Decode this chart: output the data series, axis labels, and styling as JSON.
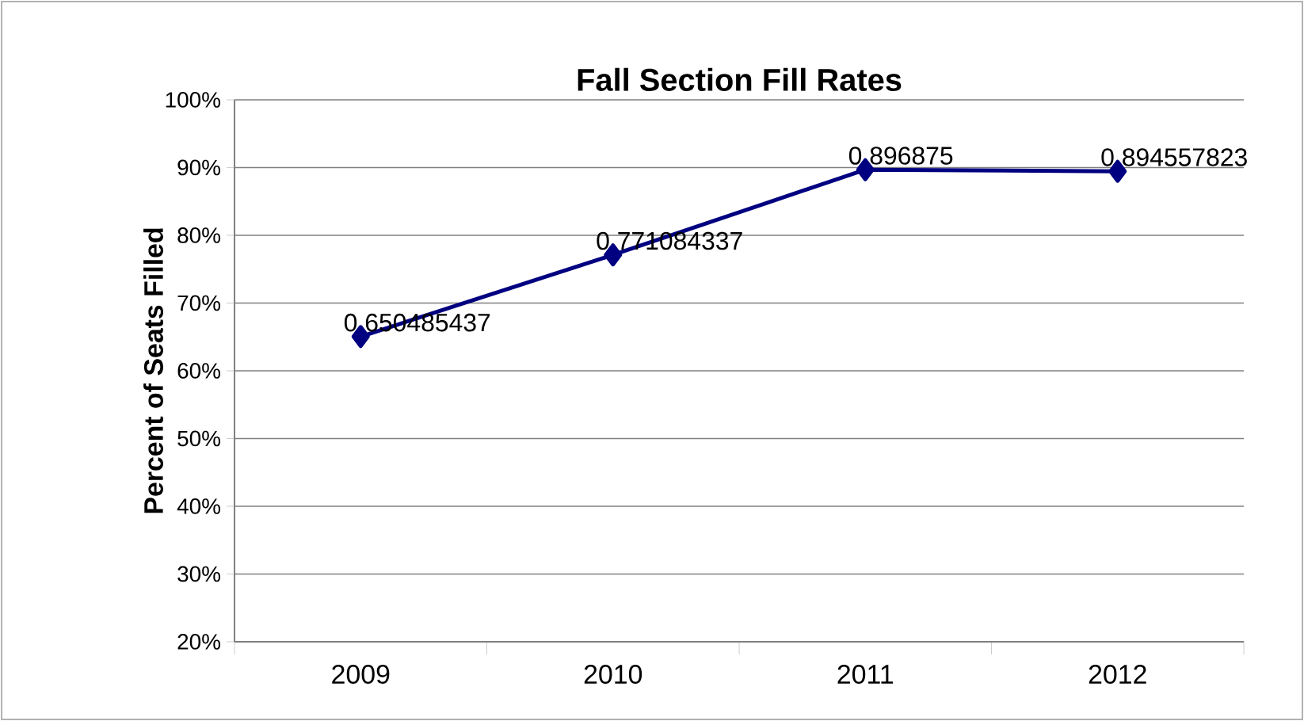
{
  "chart_data": {
    "type": "line",
    "title": "Fall Section Fill Rates",
    "ylabel": "Percent of Seats Filled",
    "categories": [
      "2009",
      "2010",
      "2011",
      "2012"
    ],
    "values": [
      0.650485437,
      0.771084337,
      0.896875,
      0.894557823
    ],
    "color": "#000080",
    "marker": "diamond",
    "line_style": "solid",
    "data_labels": true,
    "grid": "y",
    "ylim": [
      0.2,
      1.0
    ],
    "yticks": [
      {
        "value": 0.2,
        "label": "20%"
      },
      {
        "value": 0.3,
        "label": "30%"
      },
      {
        "value": 0.4,
        "label": "40%"
      },
      {
        "value": 0.5,
        "label": "50%"
      },
      {
        "value": 0.6,
        "label": "60%"
      },
      {
        "value": 0.7,
        "label": "70%"
      },
      {
        "value": 0.8,
        "label": "80%"
      },
      {
        "value": 0.9,
        "label": "90%"
      },
      {
        "value": 1.0,
        "label": "100%"
      }
    ]
  }
}
